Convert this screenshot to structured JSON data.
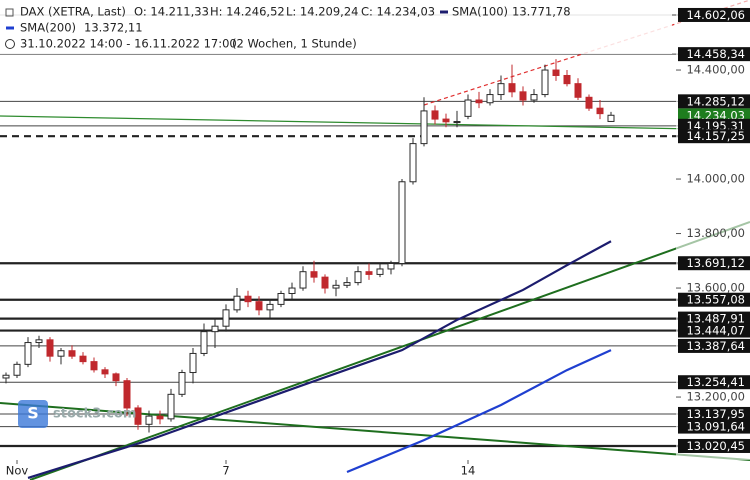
{
  "chart_data": {
    "type": "candlestick",
    "title": "DAX (XETRA, Last)",
    "header": {
      "open": "O: 14.211,33",
      "high": "H: 14.246,52",
      "low": "L: 14.209,24",
      "close": "C: 14.234,03",
      "period": "31.10.2022 14:00 - 16.11.2022 17:00",
      "span": "(2 Wochen, 1 Stunde)"
    },
    "watermark": "stock3.com",
    "categories": [
      null,
      "Nov",
      null,
      null,
      null,
      null,
      null,
      null,
      null,
      null,
      null,
      null,
      null,
      null,
      null,
      null,
      null,
      null,
      null,
      null,
      "7",
      null,
      null,
      null,
      null,
      null,
      null,
      null,
      null,
      null,
      null,
      null,
      null,
      null,
      null,
      null,
      null,
      null,
      null,
      null,
      null,
      null,
      "14",
      null,
      null,
      null,
      null,
      null,
      null,
      null,
      null,
      null,
      null,
      null,
      null,
      null
    ],
    "open": [
      13270,
      13280,
      13320,
      13400,
      13410,
      13350,
      13370,
      13350,
      13330,
      13300,
      13285,
      13260,
      13160,
      13100,
      13130,
      13120,
      13210,
      13290,
      13360,
      13440,
      13460,
      13520,
      13570,
      13550,
      13520,
      13540,
      13580,
      13600,
      13660,
      13640,
      13600,
      13610,
      13620,
      13660,
      13650,
      13670,
      13690,
      13990,
      14130,
      14250,
      14220,
      14210,
      14230,
      14290,
      14280,
      14310,
      14350,
      14320,
      14290,
      14310,
      14400,
      14380,
      14350,
      14300,
      14260,
      14211.33
    ],
    "high": [
      13290,
      13330,
      13420,
      13425,
      13420,
      13380,
      13390,
      13365,
      13345,
      13310,
      13290,
      13270,
      13170,
      13150,
      13150,
      13230,
      13300,
      13380,
      13470,
      13490,
      13540,
      13600,
      13590,
      13570,
      13560,
      13590,
      13620,
      13680,
      13700,
      13650,
      13630,
      13640,
      13680,
      13690,
      13690,
      13700,
      14000,
      14150,
      14300,
      14270,
      14240,
      14250,
      14310,
      14320,
      14330,
      14380,
      14420,
      14340,
      14330,
      14420,
      14440,
      14400,
      14370,
      14310,
      14290,
      14246.52
    ],
    "low": [
      13250,
      13270,
      13310,
      13380,
      13330,
      13320,
      13340,
      13320,
      13290,
      13270,
      13240,
      13130,
      13080,
      13070,
      13100,
      13110,
      13200,
      13250,
      13350,
      13380,
      13440,
      13510,
      13530,
      13500,
      13490,
      13530,
      13560,
      13590,
      13620,
      13580,
      13570,
      13600,
      13610,
      13630,
      13640,
      13650,
      13680,
      13980,
      14120,
      14200,
      14190,
      14190,
      14220,
      14260,
      14270,
      14290,
      14300,
      14270,
      14280,
      14300,
      14360,
      14340,
      14290,
      14250,
      14220,
      14209.24
    ],
    "close": [
      13280,
      13320,
      13400,
      13410,
      13350,
      13370,
      13350,
      13330,
      13300,
      13285,
      13260,
      13160,
      13100,
      13130,
      13120,
      13210,
      13290,
      13360,
      13440,
      13460,
      13520,
      13570,
      13550,
      13520,
      13540,
      13580,
      13600,
      13660,
      13640,
      13600,
      13610,
      13620,
      13660,
      13650,
      13670,
      13690,
      13990,
      14130,
      14250,
      14220,
      14210,
      14211,
      14290,
      14280,
      14310,
      14350,
      14320,
      14290,
      14310,
      14400,
      14380,
      14350,
      14300,
      14260,
      14240,
      14234.03
    ],
    "up_color": "#2b2b2b",
    "down_color": "#c0282d",
    "series": [
      {
        "name": "SMA(100)",
        "value_label": "13.771,78",
        "color": "#1c1c6e",
        "x": [
          2,
          13,
          27,
          36,
          41,
          47,
          51,
          55
        ],
        "values": [
          12903,
          13042,
          13244,
          13372,
          13483,
          13593,
          13684,
          13771.78
        ]
      },
      {
        "name": "SMA(200)",
        "value_label": "13.372,11",
        "color": "#1f3fd0",
        "x": [
          31,
          38,
          45,
          51,
          55
        ],
        "values": [
          12925,
          13042,
          13171,
          13299,
          13372.11
        ]
      }
    ],
    "ylim": [
      12969,
      14657
    ],
    "yticks": [
      {
        "value": 13200,
        "label": "13.200,00"
      },
      {
        "value": 13600,
        "label": "13.600,00"
      },
      {
        "value": 13800,
        "label": "13.800,00"
      },
      {
        "value": 14000,
        "label": "14.000,00"
      },
      {
        "value": 14400,
        "label": "14.400,00"
      }
    ],
    "levels": {
      "values": [
        14602.06,
        14458.34,
        14285.12,
        14195.31,
        14157.25,
        13691.12,
        13557.08,
        13487.91,
        13444.07,
        13387.64,
        13254.41,
        13137.95,
        13091.64,
        13020.45
      ],
      "value_labels": [
        "14.602,06",
        "14.458,34",
        "14.285,12",
        "14.195,31",
        "14.157,25",
        "13.691,12",
        "13.557,08",
        "13.487,91",
        "13.444,07",
        "13.387,64",
        "13.254,41",
        "13.137,95",
        "13.091,64",
        "13.020,45"
      ],
      "styles": [
        "thin",
        "thin",
        "thin",
        "thin",
        "dashed",
        "thick",
        "thick",
        "thick",
        "thick",
        "thin",
        "thin",
        "thin",
        "thin",
        "thick"
      ]
    },
    "last": {
      "value": 14234.03,
      "label": "14.234,03",
      "color": "#1e7d1e"
    }
  }
}
